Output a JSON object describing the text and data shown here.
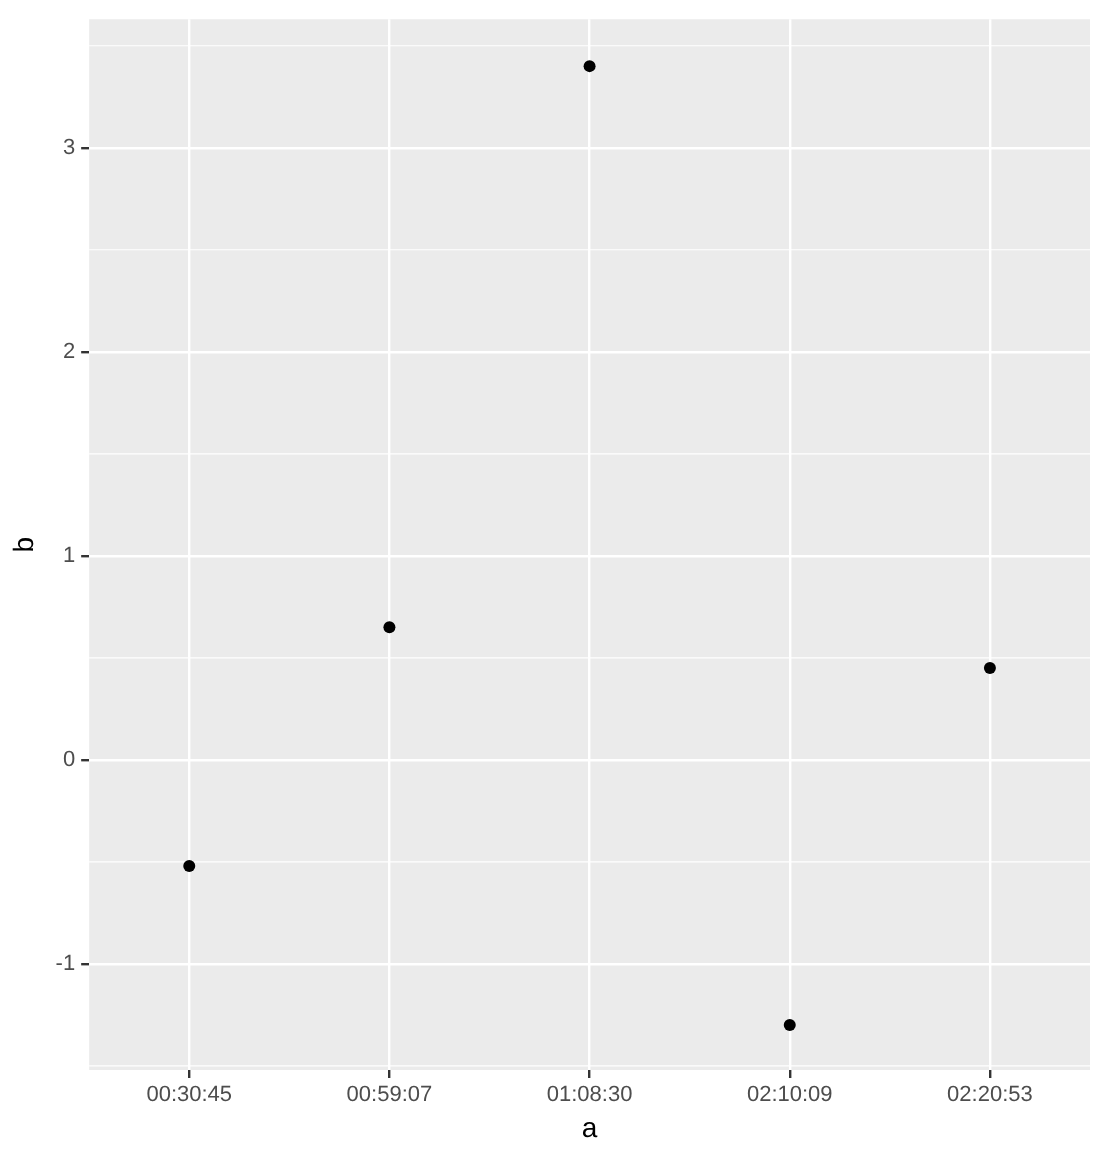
{
  "chart_data": {
    "type": "scatter",
    "xlabel": "a",
    "ylabel": "b",
    "categories": [
      "00:30:45",
      "00:59:07",
      "01:08:30",
      "02:10:09",
      "02:20:53"
    ],
    "values": [
      -0.52,
      0.65,
      3.4,
      -1.3,
      0.45
    ],
    "color": "#000000",
    "ylim": [
      -1.52,
      3.63
    ],
    "yticks": [
      -1,
      0,
      1,
      2,
      3
    ],
    "grid": true,
    "marker": "circle",
    "legend": false
  }
}
